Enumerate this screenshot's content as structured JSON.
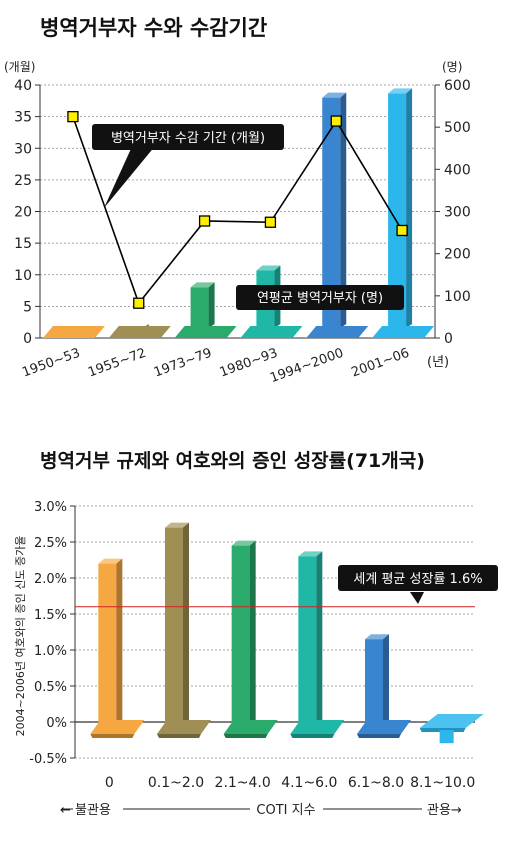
{
  "chart_data": [
    {
      "type": "bar+line",
      "title": "병역거부자 수와 수감기간",
      "left_unit": "(개월)",
      "right_unit": "(명)",
      "x_suffix": "(년)",
      "categories": [
        "1950~53",
        "1955~72",
        "1973~79",
        "1980~93",
        "1994~2000",
        "2001~06"
      ],
      "left_ticks": [
        "0",
        "5",
        "10",
        "15",
        "20",
        "25",
        "30",
        "35",
        "40"
      ],
      "right_ticks": [
        "0",
        "100",
        "200",
        "300",
        "400",
        "500",
        "600"
      ],
      "ylim_left": [
        0,
        40
      ],
      "ylim_right": [
        0,
        600
      ],
      "grid": true,
      "series": [
        {
          "name": "병역거부자 수감 기간 (개월)",
          "kind": "line",
          "axis": "left",
          "values": [
            35,
            5.5,
            18.5,
            18.3,
            34.3,
            17
          ],
          "color": "#000000",
          "marker_color": "#ffee00"
        },
        {
          "name": "연평균 병역거부자 (명)",
          "kind": "bar",
          "axis": "right",
          "values": [
            0,
            10,
            120,
            160,
            570,
            580
          ],
          "colors": [
            "#f5a742",
            "#a08f55",
            "#2aaa6b",
            "#1fb8a6",
            "#3a85d0",
            "#2bb7ec"
          ]
        }
      ]
    },
    {
      "type": "bar",
      "title": "병역거부 규제와 여호와의 증인 성장률(71개국)",
      "ylabel": "2004~2006년 여호와의 증인 신도 증가율",
      "categories": [
        "0",
        "0.1~2.0",
        "2.1~4.0",
        "4.1~6.0",
        "6.1~8.0",
        "8.1~10.0"
      ],
      "values": [
        2.2,
        2.7,
        2.45,
        2.3,
        1.15,
        -0.1
      ],
      "y_ticks": [
        "-0.5%",
        "0%",
        "0.5%",
        "1.0%",
        "1.5%",
        "2.0%",
        "2.5%",
        "3.0%"
      ],
      "ylim": [
        -0.5,
        3.0
      ],
      "grid": true,
      "colors": [
        "#f5a742",
        "#a08f55",
        "#2aaa6b",
        "#1fb8a6",
        "#3a85d0",
        "#2bb7ec"
      ],
      "reference_line": {
        "value": 1.6,
        "label": "세계 평균 성장률 1.6%",
        "color": "#d22222"
      },
      "axis_caption": {
        "left": "← 불관용",
        "center": "COTI 지수",
        "right": "관용→"
      }
    }
  ]
}
